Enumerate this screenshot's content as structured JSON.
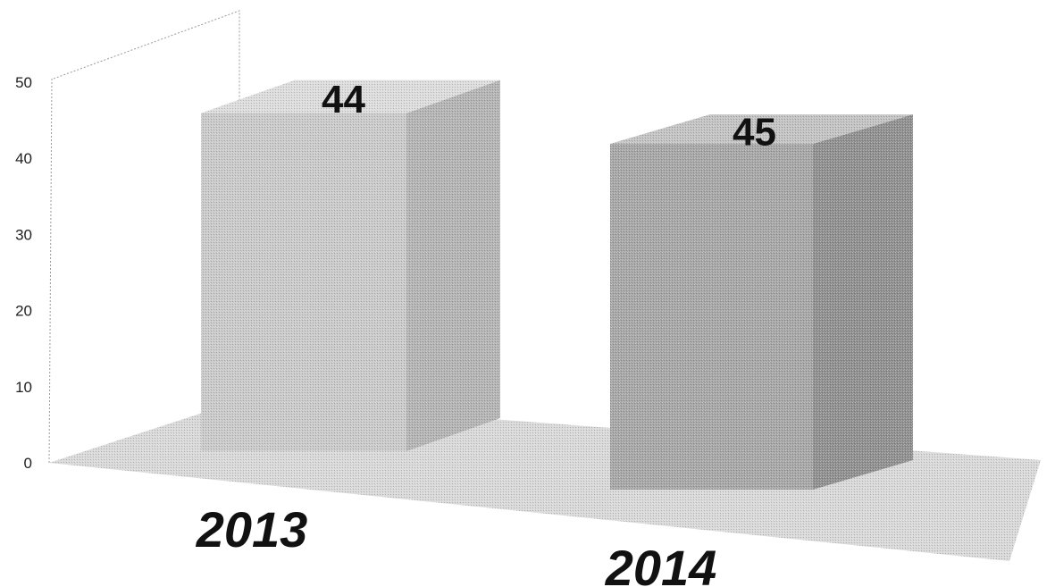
{
  "chart_data": {
    "type": "bar",
    "categories": [
      "2013",
      "2014"
    ],
    "values": [
      44,
      45
    ],
    "ylim": [
      0,
      50
    ],
    "yticks": [
      0,
      10,
      20,
      30,
      40,
      50
    ],
    "data_labels": [
      "44",
      "45"
    ],
    "grid": false,
    "three_d": true,
    "colors": {
      "bar_front": [
        "#c9c9c9",
        "#a6a6a6"
      ],
      "bar_side": [
        "#b3b3b3",
        "#8f8f8f"
      ],
      "bar_top": [
        "#dcdcdc",
        "#c2c2c2"
      ],
      "floor": "#d8d8d8"
    }
  }
}
